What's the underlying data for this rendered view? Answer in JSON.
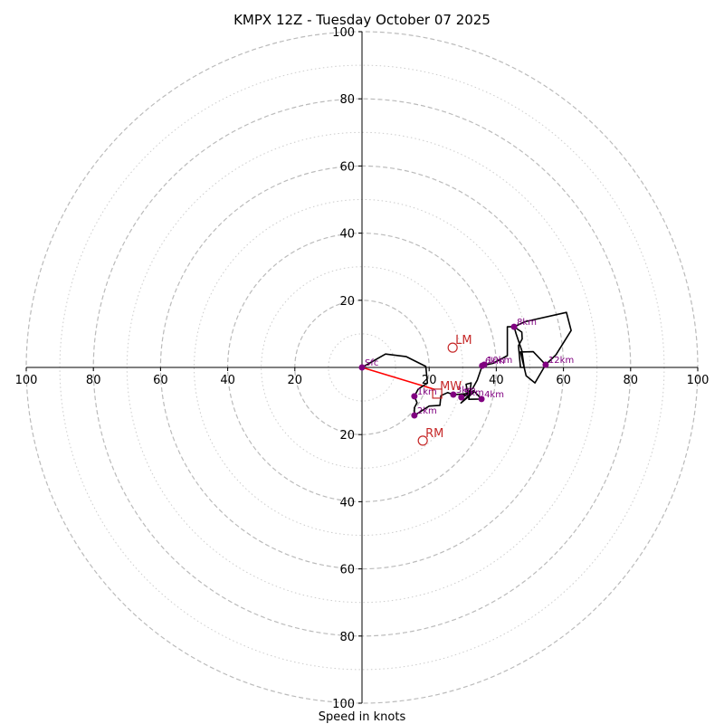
{
  "chart_data": {
    "type": "line",
    "subtype": "hodograph",
    "title": "KMPX 12Z - Tuesday October 07 2025",
    "xlabel": "Speed in knots",
    "ylabel": "",
    "range_knots": 100,
    "ring_major": [
      20,
      40,
      60,
      80,
      100
    ],
    "ring_minor": [
      10,
      30,
      50,
      70,
      90
    ],
    "tick_labels": {
      "x_left": [
        "100",
        "80",
        "60",
        "40",
        "20"
      ],
      "x_right": [
        "20",
        "40",
        "60",
        "80",
        "100"
      ],
      "y_up": [
        "20",
        "40",
        "60",
        "80",
        "100"
      ],
      "y_down": [
        "20",
        "40",
        "60",
        "80",
        "100"
      ]
    },
    "colors": {
      "hodograph": "#000000",
      "height_markers": "#800080",
      "motion": "#c62828",
      "shear_vector": "#ff0000",
      "grid": "#bbbbbb"
    },
    "hodograph_uv": [
      [
        0,
        0
      ],
      [
        7,
        4
      ],
      [
        13.2,
        3.2
      ],
      [
        19,
        0.3
      ],
      [
        19.5,
        -4.6
      ],
      [
        16.7,
        -6.5
      ],
      [
        15.6,
        -8.6
      ],
      [
        16.4,
        -10.5
      ],
      [
        15.6,
        -12
      ],
      [
        15.6,
        -14.3
      ],
      [
        20,
        -11.5
      ],
      [
        23.2,
        -11.3
      ],
      [
        23.5,
        -8.4
      ],
      [
        25.5,
        -7.5
      ],
      [
        27.2,
        -8.1
      ],
      [
        31.5,
        -7.8
      ],
      [
        31,
        -5
      ],
      [
        32.5,
        -4.6
      ],
      [
        31.8,
        -9.5
      ],
      [
        35.6,
        -9.4
      ],
      [
        33.2,
        -6.9
      ],
      [
        29.5,
        -10.6
      ],
      [
        33.4,
        -7.3
      ],
      [
        29.6,
        -8.9
      ],
      [
        33,
        -6.2
      ],
      [
        34.3,
        -3.8
      ],
      [
        35.8,
        0.5
      ],
      [
        39,
        1.2
      ],
      [
        43.3,
        3.5
      ],
      [
        43.3,
        12.1
      ],
      [
        45.3,
        12.1
      ],
      [
        47.6,
        10.5
      ],
      [
        47.7,
        8.5
      ],
      [
        46.6,
        6.5
      ],
      [
        47.2,
        0
      ],
      [
        48.3,
        0
      ],
      [
        47.6,
        5
      ],
      [
        45.9,
        10
      ],
      [
        45.3,
        12.1
      ],
      [
        48.5,
        13.6
      ],
      [
        60.9,
        16.4
      ],
      [
        62.3,
        11
      ],
      [
        57.8,
        3.8
      ],
      [
        54.7,
        0.8
      ],
      [
        51.5,
        -4.6
      ],
      [
        48.9,
        -2.5
      ],
      [
        47.2,
        4.6
      ],
      [
        51,
        4.7
      ],
      [
        54.7,
        0.8
      ]
    ],
    "height_markers": [
      {
        "label": "Sfc",
        "u": 0,
        "v": 0
      },
      {
        "label": "1km",
        "u": 15.6,
        "v": -8.6
      },
      {
        "label": "2km",
        "u": 15.6,
        "v": -14.3
      },
      {
        "label": "3km",
        "u": 27.2,
        "v": -8.1
      },
      {
        "label": "4km",
        "u": 35.6,
        "v": -9.4
      },
      {
        "label": "5km",
        "u": 29.6,
        "v": -8.9
      },
      {
        "label": "6km",
        "u": 35.8,
        "v": 0.5
      },
      {
        "label": "8km",
        "u": 45.3,
        "v": 12.1
      },
      {
        "label": "10km",
        "u": 36.4,
        "v": 0.8
      },
      {
        "label": "12km",
        "u": 54.7,
        "v": 0.8
      }
    ],
    "storm_motion": [
      {
        "label": "LM",
        "u": 27.0,
        "v": 5.9,
        "marker": "circle"
      },
      {
        "label": "RM",
        "u": 18.1,
        "v": -21.8,
        "marker": "circle"
      },
      {
        "label": "MW",
        "u": 22.4,
        "v": -7.8,
        "marker": "square"
      }
    ],
    "shear_vector": {
      "from": [
        0,
        0
      ],
      "to": [
        21.5,
        -6.5
      ]
    }
  }
}
